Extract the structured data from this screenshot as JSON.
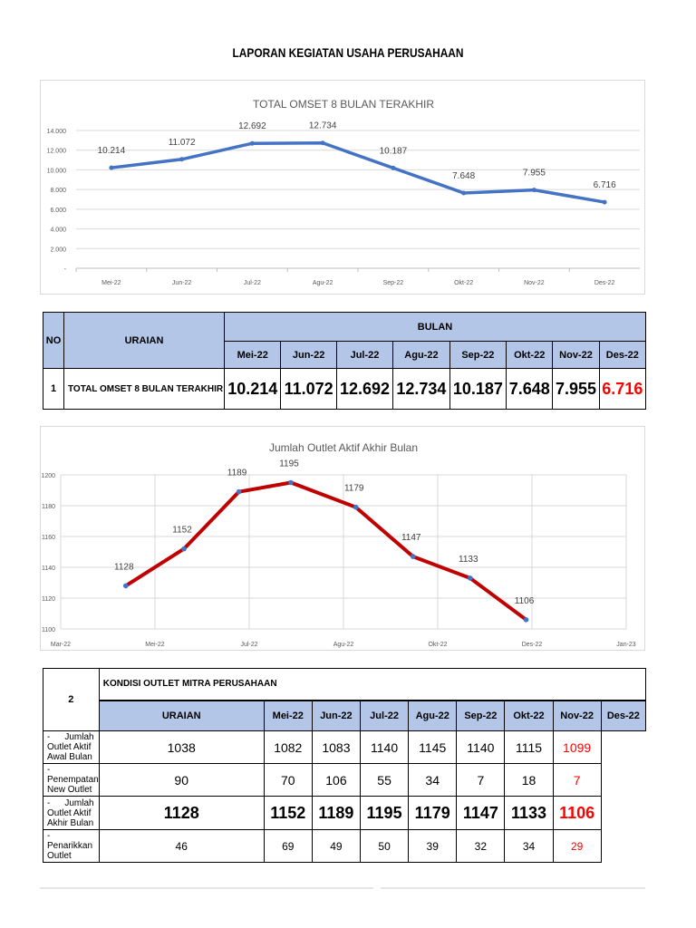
{
  "page_title": "LAPORAN KEGIATAN USAHA PERUSAHAAN",
  "chart_data": [
    {
      "type": "line",
      "title": "TOTAL OMSET 8 BULAN TERAKHIR",
      "categories": [
        "Mei-22",
        "Jun-22",
        "Jul-22",
        "Agu-22",
        "Sep-22",
        "Okt-22",
        "Nov-22",
        "Des-22"
      ],
      "values": [
        10214,
        11072,
        12692,
        12734,
        10187,
        7648,
        7955,
        6716
      ],
      "data_labels": [
        "10.214",
        "11.072",
        "12.692",
        "12.734",
        "10.187",
        "7.648",
        "7.955",
        "6.716"
      ],
      "y_ticks": [
        "-",
        "2.000",
        "4.000",
        "6.000",
        "8.000",
        "10.000",
        "12.000",
        "14.000"
      ],
      "ylim": [
        0,
        14000
      ],
      "grid": true,
      "color": "#4472c4"
    },
    {
      "type": "line",
      "title": "Jumlah Outlet Aktif Akhir Bulan",
      "x_ticks": [
        "Mar-22",
        "Mei-22",
        "Jul-22",
        "Agu-22",
        "Okt-22",
        "Des-22",
        "Jan-23"
      ],
      "values": [
        1128,
        1152,
        1189,
        1195,
        1179,
        1147,
        1133,
        1106
      ],
      "y_ticks": [
        "1100",
        "1120",
        "1140",
        "1160",
        "1180",
        "1200"
      ],
      "ylim": [
        1100,
        1200
      ],
      "grid": true,
      "color": "#c00000",
      "marker_color": "#4472c4"
    }
  ],
  "table1": {
    "no_header": "NO",
    "uraian_header": "URAIAN",
    "bulan_header": "BULAN",
    "months": [
      "Mei-22",
      "Jun-22",
      "Jul-22",
      "Agu-22",
      "Sep-22",
      "Okt-22",
      "Nov-22",
      "Des-22"
    ],
    "row": {
      "no": "1",
      "label": "TOTAL OMSET 8 BULAN TERAKHIR",
      "values": [
        "10.214",
        "11.072",
        "12.692",
        "12.734",
        "10.187",
        "7.648",
        "7.955",
        "6.716"
      ]
    }
  },
  "table2": {
    "no": "2",
    "section_title": "KONDISI OUTLET MITRA PERUSAHAAN",
    "uraian_header": "URAIAN",
    "months": [
      "Mei-22",
      "Jun-22",
      "Jul-22",
      "Agu-22",
      "Sep-22",
      "Okt-22",
      "Nov-22",
      "Des-22"
    ],
    "rows": [
      {
        "label": "Jumlah Outlet Aktif Awal Bulan",
        "values": [
          "1038",
          "1082",
          "1083",
          "1140",
          "1145",
          "1140",
          "1115",
          "1099"
        ]
      },
      {
        "label": "Penempatan New Outlet",
        "values": [
          "90",
          "70",
          "106",
          "55",
          "34",
          "7",
          "18",
          "7"
        ]
      },
      {
        "label": "Jumlah Outlet Aktif Akhir Bulan",
        "values": [
          "1128",
          "1152",
          "1189",
          "1195",
          "1179",
          "1147",
          "1133",
          "1106"
        ]
      },
      {
        "label": "Penarikkan Outlet",
        "values": [
          "46",
          "69",
          "49",
          "50",
          "39",
          "32",
          "34",
          "29"
        ]
      }
    ],
    "bullet": "-"
  }
}
